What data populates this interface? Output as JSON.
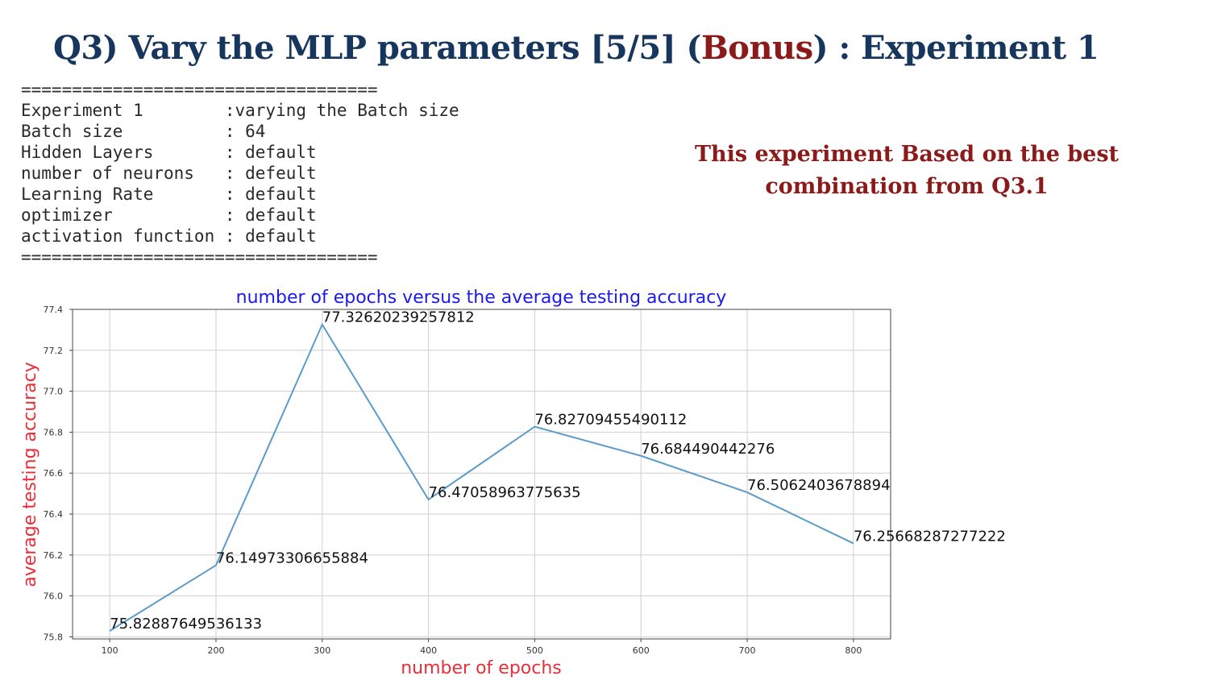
{
  "slide": {
    "title_main": "Q3) Vary the MLP parameters [5/5]  (",
    "title_bonus": "Bonus",
    "title_end": ") : Experiment 1",
    "separator": "===================================",
    "config": [
      {
        "text": "Experiment 1        :varying the Batch size"
      },
      {
        "text": "Batch size          : 64"
      },
      {
        "text": "Hidden Layers       : default"
      },
      {
        "text": "number of neurons   : defeult"
      },
      {
        "text": "Learning Rate       : default"
      },
      {
        "text": "optimizer           : default"
      },
      {
        "text": "activation function : default"
      }
    ],
    "note_line1": "This experiment Based on the best",
    "note_line2": "combination from Q3.1"
  },
  "colors": {
    "title": "#17365d",
    "accent_red": "#8b1a1a",
    "line": "#5b9bc8",
    "chart_title": "#1a1aee",
    "axis_label": "#e8303a"
  },
  "chart_data": {
    "type": "line",
    "title": "number of epochs versus the average testing accuracy",
    "xlabel": "number of epochs",
    "ylabel": "average testing accuracy",
    "x": [
      100,
      200,
      300,
      400,
      500,
      600,
      700,
      800
    ],
    "series": [
      {
        "values": [
          75.82887649536133,
          76.14973306655884,
          77.32620239257812,
          76.47058963775635,
          76.82709455490112,
          76.684490442276,
          76.5062403678894,
          76.25668287277222
        ]
      }
    ],
    "data_labels": [
      "75.82887649536133",
      "76.14973306655884",
      "77.32620239257812",
      "76.47058963775635",
      "76.82709455490112",
      "76.684490442276",
      "76.5062403678894",
      "76.25668287277222"
    ],
    "xticks": [
      "100",
      "200",
      "300",
      "400",
      "500",
      "600",
      "700",
      "800"
    ],
    "yticks": [
      "75.8",
      "76.0",
      "76.2",
      "76.4",
      "76.6",
      "76.8",
      "77.0",
      "77.2",
      "77.4"
    ],
    "xlim": [
      65,
      835
    ],
    "ylim": [
      75.79,
      77.4
    ],
    "grid": true,
    "legend": "none"
  }
}
